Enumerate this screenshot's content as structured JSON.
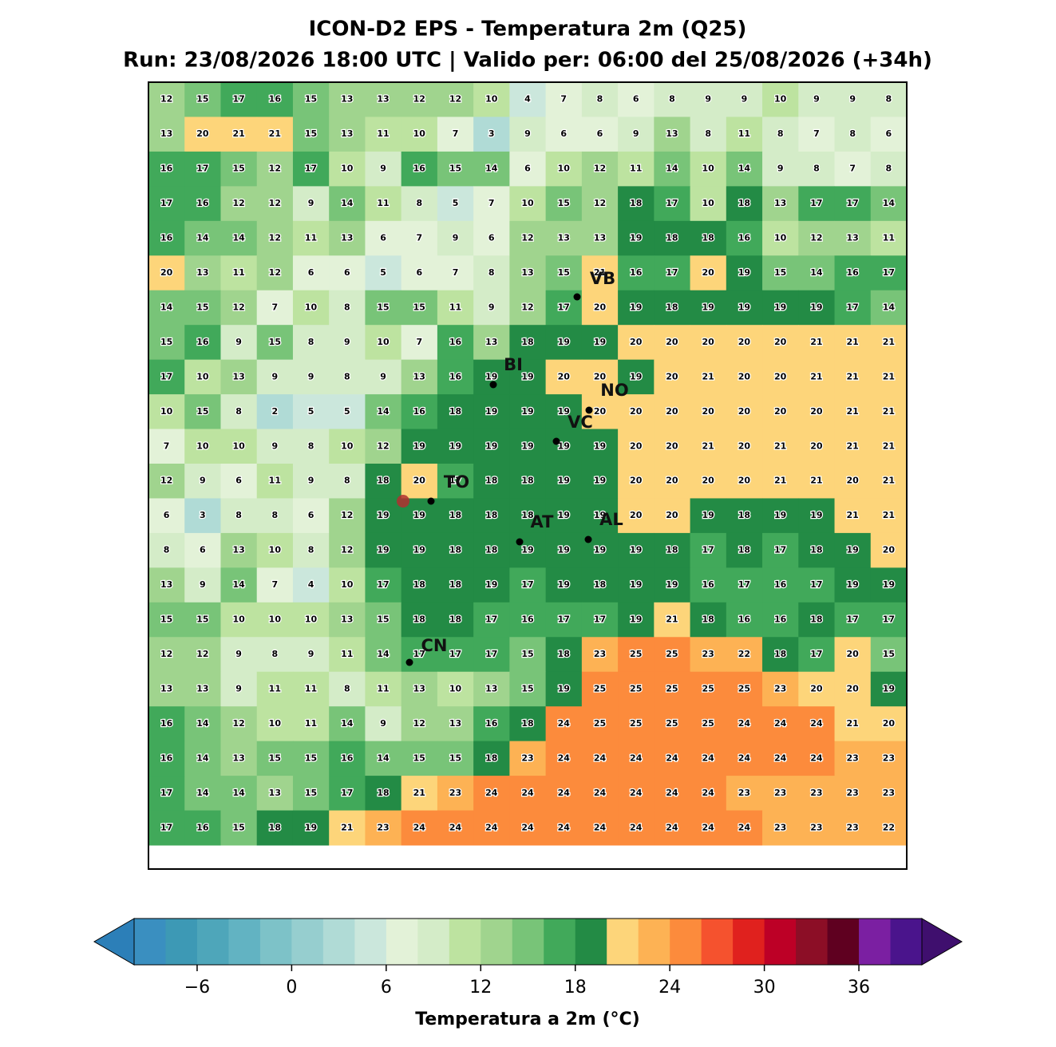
{
  "chart_data": {
    "type": "grid-map",
    "title": "ICON-D2 EPS - Temperatura 2m (Q25)",
    "subtitle": "Run: 23/08/2026 18:00 UTC | Valido per: 06:00 del 25/08/2026 (+34h)",
    "values": [
      [
        12,
        15,
        17,
        16,
        15,
        13,
        13,
        12,
        12,
        10,
        4,
        7,
        8,
        6,
        8,
        9,
        9,
        10,
        9,
        9,
        8
      ],
      [
        13,
        20,
        21,
        21,
        15,
        13,
        11,
        10,
        7,
        3,
        9,
        6,
        6,
        9,
        13,
        8,
        11,
        8,
        7,
        8,
        6
      ],
      [
        16,
        17,
        15,
        12,
        17,
        10,
        9,
        16,
        15,
        14,
        6,
        10,
        12,
        11,
        14,
        10,
        14,
        9,
        8,
        7,
        8
      ],
      [
        17,
        16,
        12,
        12,
        9,
        14,
        11,
        8,
        5,
        7,
        10,
        15,
        12,
        18,
        17,
        10,
        18,
        13,
        17,
        17,
        14
      ],
      [
        16,
        14,
        14,
        12,
        11,
        13,
        6,
        7,
        9,
        6,
        12,
        13,
        13,
        19,
        18,
        18,
        16,
        10,
        12,
        13,
        11
      ],
      [
        20,
        13,
        11,
        12,
        6,
        6,
        5,
        6,
        7,
        8,
        13,
        15,
        21,
        16,
        17,
        20,
        19,
        15,
        14,
        16,
        17
      ],
      [
        14,
        15,
        12,
        7,
        10,
        8,
        15,
        15,
        11,
        9,
        12,
        17,
        20,
        19,
        18,
        19,
        19,
        19,
        19,
        17,
        14
      ],
      [
        15,
        16,
        9,
        15,
        8,
        9,
        10,
        7,
        16,
        13,
        18,
        19,
        19,
        20,
        20,
        20,
        20,
        20,
        21,
        21,
        21
      ],
      [
        17,
        10,
        13,
        9,
        9,
        8,
        9,
        13,
        16,
        19,
        19,
        20,
        20,
        19,
        20,
        21,
        20,
        20,
        21,
        21,
        21
      ],
      [
        10,
        15,
        8,
        2,
        5,
        5,
        14,
        16,
        18,
        19,
        19,
        19,
        20,
        20,
        20,
        20,
        20,
        20,
        20,
        21,
        21
      ],
      [
        7,
        10,
        10,
        9,
        8,
        10,
        12,
        19,
        19,
        19,
        19,
        19,
        19,
        20,
        20,
        21,
        20,
        21,
        20,
        21,
        21
      ],
      [
        12,
        9,
        6,
        11,
        9,
        8,
        18,
        20,
        17,
        18,
        18,
        19,
        19,
        20,
        20,
        20,
        20,
        21,
        21,
        20,
        21
      ],
      [
        6,
        3,
        8,
        8,
        6,
        12,
        19,
        19,
        18,
        18,
        18,
        19,
        19,
        20,
        20,
        19,
        18,
        19,
        19,
        21,
        21
      ],
      [
        8,
        6,
        13,
        10,
        8,
        12,
        19,
        19,
        18,
        18,
        19,
        19,
        19,
        19,
        18,
        17,
        18,
        17,
        18,
        19,
        20
      ],
      [
        13,
        9,
        14,
        7,
        4,
        10,
        17,
        18,
        18,
        19,
        17,
        19,
        18,
        19,
        19,
        16,
        17,
        16,
        17,
        19,
        19
      ],
      [
        15,
        15,
        10,
        10,
        10,
        13,
        15,
        18,
        18,
        17,
        16,
        17,
        17,
        19,
        21,
        18,
        16,
        16,
        18,
        17,
        17
      ],
      [
        12,
        12,
        9,
        8,
        9,
        11,
        14,
        17,
        17,
        17,
        15,
        18,
        23,
        25,
        25,
        23,
        22,
        18,
        17,
        20,
        15
      ],
      [
        13,
        13,
        9,
        11,
        11,
        8,
        11,
        13,
        10,
        13,
        15,
        19,
        25,
        25,
        25,
        25,
        25,
        23,
        20,
        20,
        19
      ],
      [
        16,
        14,
        12,
        10,
        11,
        14,
        9,
        12,
        13,
        16,
        18,
        24,
        25,
        25,
        25,
        25,
        24,
        24,
        24,
        21,
        20
      ],
      [
        16,
        14,
        13,
        15,
        15,
        16,
        14,
        15,
        15,
        18,
        23,
        24,
        24,
        24,
        24,
        24,
        24,
        24,
        24,
        23,
        23
      ],
      [
        17,
        14,
        14,
        13,
        15,
        17,
        18,
        21,
        23,
        24,
        24,
        24,
        24,
        24,
        24,
        24,
        23,
        23,
        23,
        23,
        23
      ],
      [
        17,
        16,
        15,
        18,
        19,
        21,
        23,
        24,
        24,
        24,
        24,
        24,
        24,
        24,
        24,
        24,
        24,
        23,
        23,
        23,
        22
      ]
    ],
    "cities": [
      "VB",
      "BI",
      "NO",
      "VC",
      "TO",
      "AT",
      "AL",
      "CN"
    ],
    "colorbar": {
      "label": "Temperatura a 2m (°C)",
      "bounds": [
        -10,
        -8,
        -6,
        -4,
        -2,
        0,
        2,
        4,
        6,
        8,
        10,
        12,
        14,
        16,
        18,
        20,
        22,
        24,
        26,
        28,
        30,
        32,
        34,
        36,
        38,
        40
      ],
      "colors": [
        "#3a8fc0",
        "#3d99b5",
        "#4ea6ba",
        "#62b3c2",
        "#7dc2c8",
        "#96cecf",
        "#b0dbd6",
        "#cbe7dc",
        "#e3f2d8",
        "#d4ecc8",
        "#bde3a0",
        "#a0d48e",
        "#78c478",
        "#41a95a",
        "#238b45",
        "#fdd57a",
        "#fdb254",
        "#fc8b3c",
        "#f5522e",
        "#e0211e",
        "#bd0026",
        "#8c0e26",
        "#5f0020",
        "#7b1fa2",
        "#4a148c"
      ],
      "under": "#2c7fb8",
      "over": "#3f0f6e",
      "ticks": [
        {
          "value": -6,
          "label": "−6"
        },
        0,
        6,
        12,
        18,
        24,
        30,
        36
      ]
    }
  }
}
